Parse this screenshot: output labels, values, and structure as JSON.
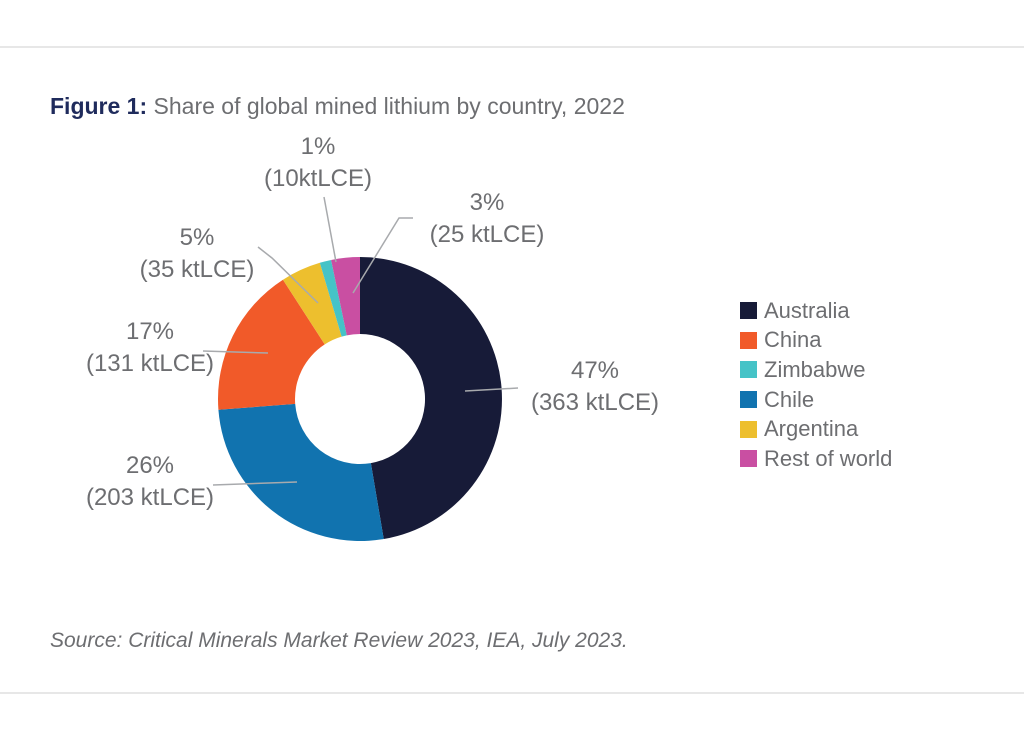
{
  "page": {
    "title_prefix": "Figure 1:",
    "title_rest": " Share of global mined lithium by country, 2022",
    "source": "Source: Critical Minerals Market Review 2023, IEA, July 2023."
  },
  "chart_data": {
    "type": "pie",
    "subtype": "donut",
    "title": "Share of global mined lithium by country, 2022",
    "unit": "ktLCE",
    "total_value": 767,
    "start_angle_deg": 0,
    "direction": "clockwise",
    "legend_position": "right",
    "slices": [
      {
        "name": "Australia",
        "value": 363,
        "pct": 47,
        "pct_label": "47%",
        "value_label": "(363 ktLCE)",
        "color": "#171b38"
      },
      {
        "name": "Chile",
        "value": 203,
        "pct": 26,
        "pct_label": "26%",
        "value_label": "(203 ktLCE)",
        "color": "#1173af"
      },
      {
        "name": "China",
        "value": 131,
        "pct": 17,
        "pct_label": "17%",
        "value_label": "(131 ktLCE)",
        "color": "#f15a29"
      },
      {
        "name": "Argentina",
        "value": 35,
        "pct": 5,
        "pct_label": "5%",
        "value_label": "(35 ktLCE)",
        "color": "#edbf2e"
      },
      {
        "name": "Zimbabwe",
        "value": 10,
        "pct": 1,
        "pct_label": "1%",
        "value_label": "(10ktLCE)",
        "color": "#45c3c7"
      },
      {
        "name": "Rest of world",
        "value": 25,
        "pct": 3,
        "pct_label": "3%",
        "value_label": "(25 ktLCE)",
        "color": "#c94fa2"
      }
    ],
    "legend": [
      {
        "label": "Australia",
        "color": "#171b38"
      },
      {
        "label": "China",
        "color": "#f15a29"
      },
      {
        "label": "Zimbabwe",
        "color": "#45c3c7"
      },
      {
        "label": "Chile",
        "color": "#1173af"
      },
      {
        "label": "Argentina",
        "color": "#edbf2e"
      },
      {
        "label": "Rest of world",
        "color": "#c94fa2"
      }
    ]
  },
  "colors": {
    "title_accent": "#1f2b5c",
    "text_gray": "#6d6e71",
    "leader_line": "#a8aaad",
    "rule_gray": "#e7e7e7"
  }
}
